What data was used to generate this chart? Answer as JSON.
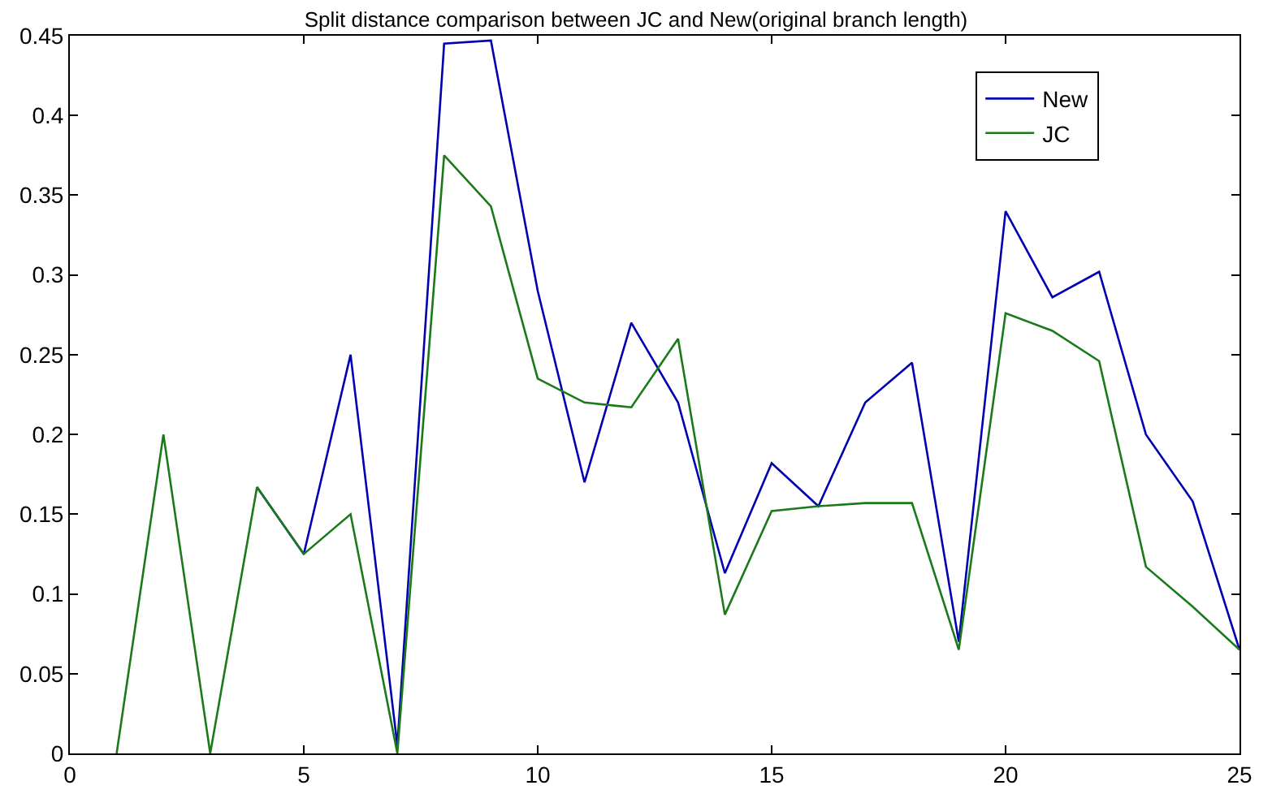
{
  "chart_data": {
    "type": "line",
    "title": "Split distance comparison between JC and New(original branch length)",
    "x": [
      1,
      2,
      3,
      4,
      5,
      6,
      7,
      8,
      9,
      10,
      11,
      12,
      13,
      14,
      15,
      16,
      17,
      18,
      19,
      20,
      21,
      22,
      23,
      24,
      25
    ],
    "series": [
      {
        "name": "New",
        "color": "#0000b0",
        "values": [
          null,
          null,
          null,
          0.167,
          0.125,
          0.25,
          0.005,
          0.445,
          0.447,
          0.29,
          0.17,
          0.27,
          0.22,
          0.113,
          0.182,
          0.155,
          0.22,
          0.245,
          0.07,
          0.34,
          0.286,
          0.302,
          0.2,
          0.158,
          0.065
        ]
      },
      {
        "name": "JC",
        "color": "#1a7a1a",
        "values": [
          0,
          0.2,
          0,
          0.167,
          0.125,
          0.15,
          0,
          0.375,
          0.343,
          0.235,
          0.22,
          0.217,
          0.26,
          0.087,
          0.152,
          0.155,
          0.157,
          0.157,
          0.065,
          0.276,
          0.265,
          0.246,
          0.117,
          0.092,
          0.065
        ]
      }
    ],
    "xlim": [
      0,
      25
    ],
    "xticks": [
      0,
      5,
      10,
      15,
      20,
      25
    ],
    "ylim": [
      0,
      0.45
    ],
    "yticks": [
      0,
      0.05,
      0.1,
      0.15,
      0.2,
      0.25,
      0.3,
      0.35,
      0.4,
      0.45
    ],
    "legend": "top right",
    "marker": "none",
    "line_style": "solid"
  }
}
